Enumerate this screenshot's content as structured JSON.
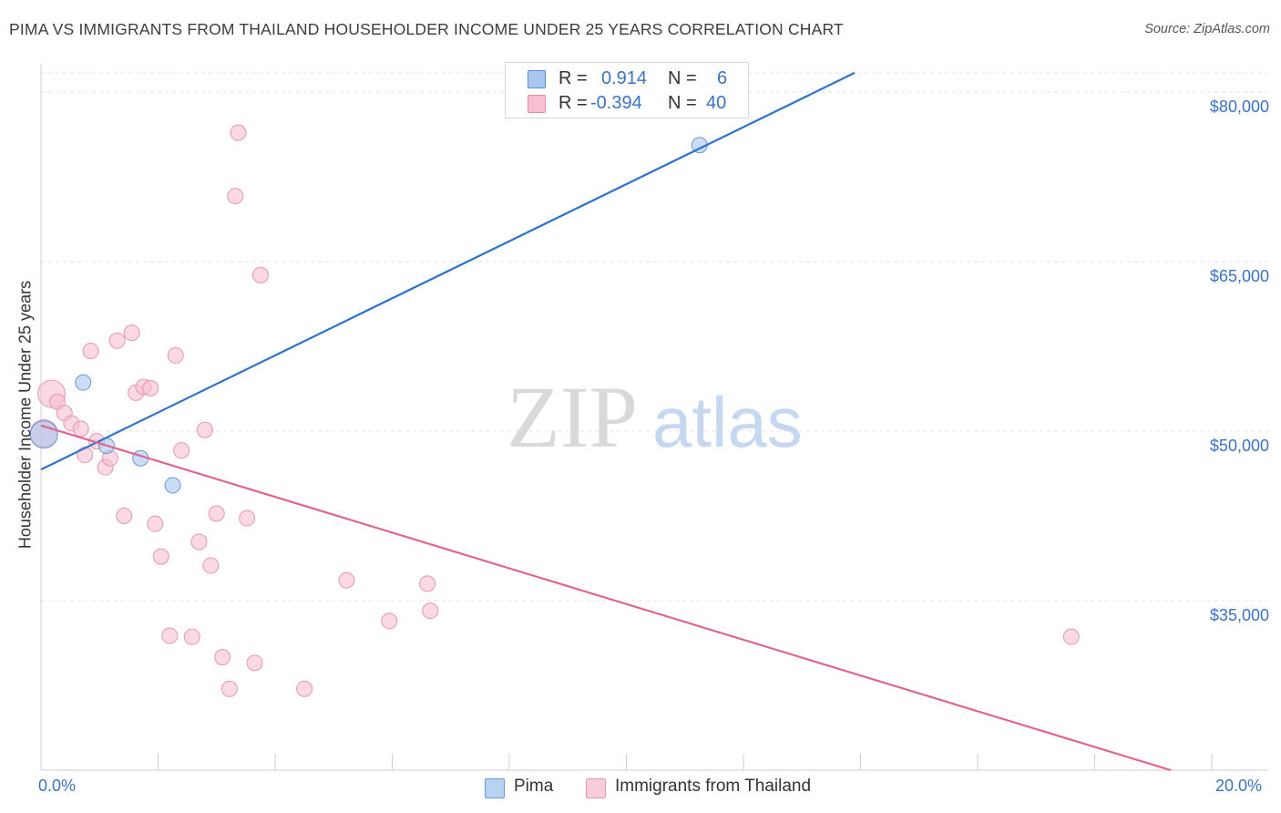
{
  "title": "PIMA VS IMMIGRANTS FROM THAILAND HOUSEHOLDER INCOME UNDER 25 YEARS CORRELATION CHART",
  "source": "Source: ZipAtlas.com",
  "watermark": {
    "zip": "ZIP",
    "atlas": "atlas"
  },
  "legend": {
    "rows": [
      {
        "r_label": "R =",
        "r_value": "0.914",
        "n_label": "N =",
        "n_value": "6",
        "color": "#a9c7ee",
        "stroke": "#5a8fd6"
      },
      {
        "r_label": "R =",
        "r_value": "-0.394",
        "n_label": "N =",
        "n_value": "40",
        "color": "#f7c0d2",
        "stroke": "#e48aa8"
      }
    ]
  },
  "bottom_legend": [
    {
      "label": "Pima",
      "color": "#b8d2f2",
      "stroke": "#6a9ad8"
    },
    {
      "label": "Immigrants from Thailand",
      "color": "#f9ccdb",
      "stroke": "#e796b2"
    }
  ],
  "chart_data": {
    "type": "scatter",
    "ylabel": "Householder Income Under 25 years",
    "xlabel": "",
    "xlim": [
      0,
      20
    ],
    "ylim": [
      20000,
      82500
    ],
    "x_ticks": [
      "0.0%",
      "20.0%"
    ],
    "y_ticks": [
      {
        "value": 35000,
        "label": "$35,000"
      },
      {
        "value": 50000,
        "label": "$50,000"
      },
      {
        "value": 65000,
        "label": "$65,000"
      },
      {
        "value": 80000,
        "label": "$80,000"
      }
    ],
    "grid": true,
    "series": [
      {
        "name": "Pima",
        "color": "#a9c7ee",
        "stroke": "#6a9ad8",
        "line_color": "#2f72cc",
        "trend": {
          "x1": 0.0,
          "y1": 46600,
          "x2": 13.9,
          "y2": 81700
        },
        "points": [
          {
            "x": 0.05,
            "y": 49700,
            "big": true
          },
          {
            "x": 0.72,
            "y": 54300
          },
          {
            "x": 1.12,
            "y": 48700
          },
          {
            "x": 1.7,
            "y": 47600
          },
          {
            "x": 2.25,
            "y": 45200
          },
          {
            "x": 11.25,
            "y": 75300
          }
        ]
      },
      {
        "name": "Immigrants from Thailand",
        "color": "#f7c0d2",
        "stroke": "#e896b2",
        "line_color": "#e06592",
        "trend": {
          "x1": 0.0,
          "y1": 50500,
          "x2": 19.3,
          "y2": 20000
        },
        "points": [
          {
            "x": 0.05,
            "y": 49800,
            "big": true
          },
          {
            "x": 0.18,
            "y": 53300,
            "big": true
          },
          {
            "x": 0.28,
            "y": 52600
          },
          {
            "x": 0.4,
            "y": 51600
          },
          {
            "x": 0.52,
            "y": 50700
          },
          {
            "x": 0.68,
            "y": 50200
          },
          {
            "x": 0.75,
            "y": 47900
          },
          {
            "x": 0.85,
            "y": 57100
          },
          {
            "x": 0.95,
            "y": 49100
          },
          {
            "x": 1.1,
            "y": 46800
          },
          {
            "x": 1.18,
            "y": 47600
          },
          {
            "x": 1.3,
            "y": 58000
          },
          {
            "x": 1.42,
            "y": 42500
          },
          {
            "x": 1.55,
            "y": 58700
          },
          {
            "x": 1.62,
            "y": 53400
          },
          {
            "x": 1.75,
            "y": 53900
          },
          {
            "x": 1.87,
            "y": 53800
          },
          {
            "x": 1.95,
            "y": 41800
          },
          {
            "x": 2.05,
            "y": 38900
          },
          {
            "x": 2.2,
            "y": 31900
          },
          {
            "x": 2.3,
            "y": 56700
          },
          {
            "x": 2.4,
            "y": 48300
          },
          {
            "x": 2.58,
            "y": 31800
          },
          {
            "x": 2.7,
            "y": 40200
          },
          {
            "x": 2.8,
            "y": 50100
          },
          {
            "x": 2.9,
            "y": 38100
          },
          {
            "x": 3.0,
            "y": 42700
          },
          {
            "x": 3.1,
            "y": 30000
          },
          {
            "x": 3.22,
            "y": 27200
          },
          {
            "x": 3.32,
            "y": 70800
          },
          {
            "x": 3.37,
            "y": 76400
          },
          {
            "x": 3.52,
            "y": 42300
          },
          {
            "x": 3.65,
            "y": 29500
          },
          {
            "x": 3.75,
            "y": 63800
          },
          {
            "x": 4.5,
            "y": 27200
          },
          {
            "x": 5.22,
            "y": 36800
          },
          {
            "x": 5.95,
            "y": 33200
          },
          {
            "x": 6.6,
            "y": 36500
          },
          {
            "x": 6.65,
            "y": 34100
          },
          {
            "x": 17.6,
            "y": 31800
          }
        ]
      }
    ]
  }
}
